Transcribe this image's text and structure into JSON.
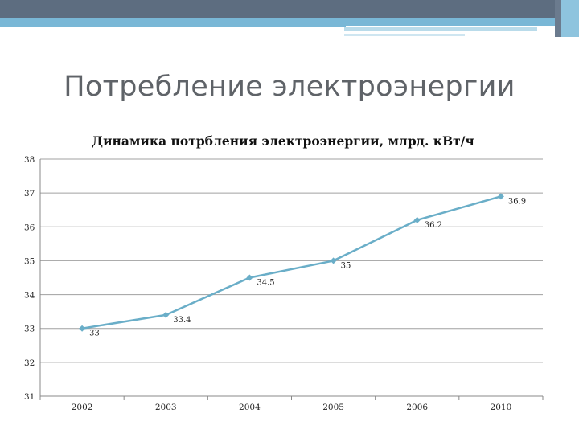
{
  "slide": {
    "title": "Потребление электроэнергии"
  },
  "colors": {
    "header_dark": "#5d6d80",
    "header_accent": "#79b7d6",
    "line": "#6aaec8",
    "grid": "#a0a0a0"
  },
  "chart_data": {
    "type": "line",
    "title": "Динамика потрбления электроэнергии, млрд. кВт/ч",
    "xlabel": "",
    "ylabel": "",
    "categories": [
      "2002",
      "2003",
      "2004",
      "2005",
      "2006",
      "2010"
    ],
    "series": [
      {
        "values": [
          33,
          33.4,
          34.5,
          35,
          36.2,
          36.9
        ],
        "labels": [
          "33",
          "33.4",
          "34.5",
          "35",
          "36.2",
          "36.9"
        ]
      }
    ],
    "ylim": [
      31,
      38
    ],
    "yticks": [
      "31",
      "32",
      "33",
      "34",
      "35",
      "36",
      "37",
      "38"
    ],
    "grid": true,
    "legend": "none"
  }
}
